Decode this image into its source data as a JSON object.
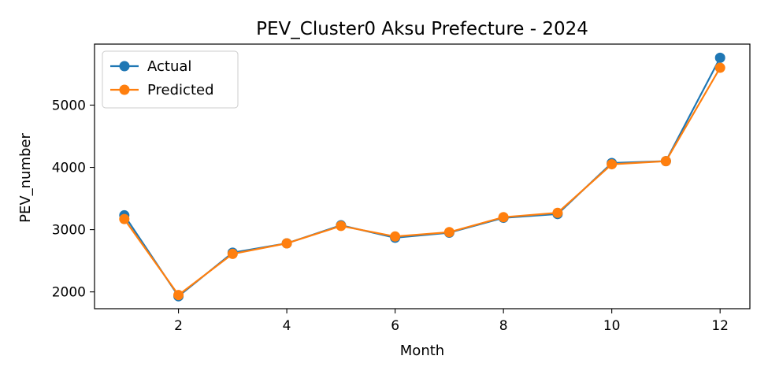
{
  "chart_data": {
    "type": "line",
    "title": "PEV_Cluster0 Aksu Prefecture - 2024",
    "xlabel": "Month",
    "ylabel": "PEV_number",
    "x": [
      1,
      2,
      3,
      4,
      5,
      6,
      7,
      8,
      9,
      10,
      11,
      12
    ],
    "xticks": [
      2,
      4,
      6,
      8,
      10,
      12
    ],
    "yticks": [
      2000,
      3000,
      4000,
      5000
    ],
    "xlim": [
      0.45,
      12.55
    ],
    "ylim": [
      1730,
      5980
    ],
    "grid": false,
    "legend_position": "top-left",
    "series": [
      {
        "name": "Actual",
        "color": "#1f77b4",
        "marker": "circle",
        "values": [
          3230,
          1930,
          2630,
          2780,
          3070,
          2870,
          2950,
          3190,
          3250,
          4070,
          4100,
          5760
        ]
      },
      {
        "name": "Predicted",
        "color": "#ff7f0e",
        "marker": "circle",
        "values": [
          3170,
          1950,
          2610,
          2780,
          3060,
          2890,
          2960,
          3200,
          3270,
          4050,
          4100,
          5600
        ]
      }
    ]
  }
}
